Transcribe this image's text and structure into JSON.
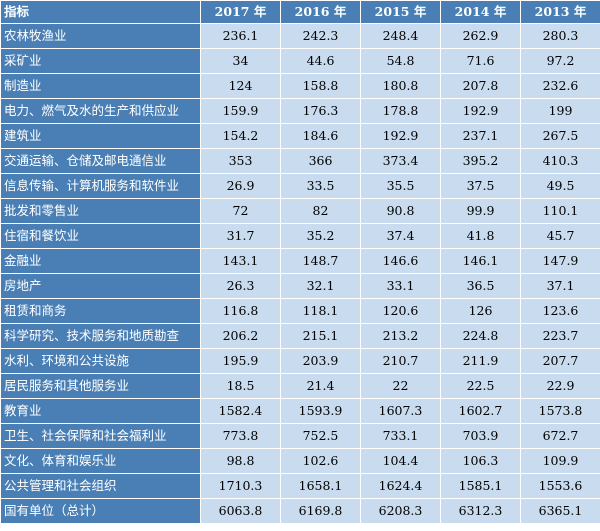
{
  "table": {
    "header": [
      "指标",
      "2017 年",
      "2016 年",
      "2015 年",
      "2014 年",
      "2013 年"
    ],
    "rows": [
      {
        "label": "农林牧渔业",
        "values": [
          "236.1",
          "242.3",
          "248.4",
          "262.9",
          "280.3"
        ]
      },
      {
        "label": "采矿业",
        "values": [
          "34",
          "44.6",
          "54.8",
          "71.6",
          "97.2"
        ]
      },
      {
        "label": "制造业",
        "values": [
          "124",
          "158.8",
          "180.8",
          "207.8",
          "232.6"
        ]
      },
      {
        "label": "电力、燃气及水的生产和供应业",
        "values": [
          "159.9",
          "176.3",
          "178.8",
          "192.9",
          "199"
        ]
      },
      {
        "label": "建筑业",
        "values": [
          "154.2",
          "184.6",
          "192.9",
          "237.1",
          "267.5"
        ]
      },
      {
        "label": "交通运输、仓储及邮电通信业",
        "values": [
          "353",
          "366",
          "373.4",
          "395.2",
          "410.3"
        ]
      },
      {
        "label": "信息传输、计算机服务和软件业",
        "values": [
          "26.9",
          "33.5",
          "35.5",
          "37.5",
          "49.5"
        ]
      },
      {
        "label": "批发和零售业",
        "values": [
          "72",
          "82",
          "90.8",
          "99.9",
          "110.1"
        ]
      },
      {
        "label": "住宿和餐饮业",
        "values": [
          "31.7",
          "35.2",
          "37.4",
          "41.8",
          "45.7"
        ]
      },
      {
        "label": "金融业",
        "values": [
          "143.1",
          "148.7",
          "146.6",
          "146.1",
          "147.9"
        ]
      },
      {
        "label": "房地产",
        "values": [
          "26.3",
          "32.1",
          "33.1",
          "36.5",
          "37.1"
        ]
      },
      {
        "label": "租赁和商务",
        "values": [
          "116.8",
          "118.1",
          "120.6",
          "126",
          "123.6"
        ]
      },
      {
        "label": "科学研究、技术服务和地质勘查",
        "values": [
          "206.2",
          "215.1",
          "213.2",
          "224.8",
          "223.7"
        ]
      },
      {
        "label": "水利、环境和公共设施",
        "values": [
          "195.9",
          "203.9",
          "210.7",
          "211.9",
          "207.7"
        ]
      },
      {
        "label": "居民服务和其他服务业",
        "values": [
          "18.5",
          "21.4",
          "22",
          "22.5",
          "22.9"
        ]
      },
      {
        "label": "教育业",
        "values": [
          "1582.4",
          "1593.9",
          "1607.3",
          "1602.7",
          "1573.8"
        ]
      },
      {
        "label": "卫生、社会保障和社会福利业",
        "values": [
          "773.8",
          "752.5",
          "733.1",
          "703.9",
          "672.7"
        ]
      },
      {
        "label": "文化、体育和娱乐业",
        "values": [
          "98.8",
          "102.6",
          "104.4",
          "106.3",
          "109.9"
        ]
      },
      {
        "label": "公共管理和社会组织",
        "values": [
          "1710.3",
          "1658.1",
          "1624.4",
          "1585.1",
          "1553.6"
        ]
      },
      {
        "label": "国有单位（总计）",
        "values": [
          "6063.8",
          "6169.8",
          "6208.3",
          "6312.3",
          "6365.1"
        ]
      }
    ]
  },
  "colors": {
    "header_bg": "#4a7fb5",
    "label_bg": "#4a7fb5",
    "cell_bg": "#c9dcef",
    "border": "#ffffff"
  }
}
